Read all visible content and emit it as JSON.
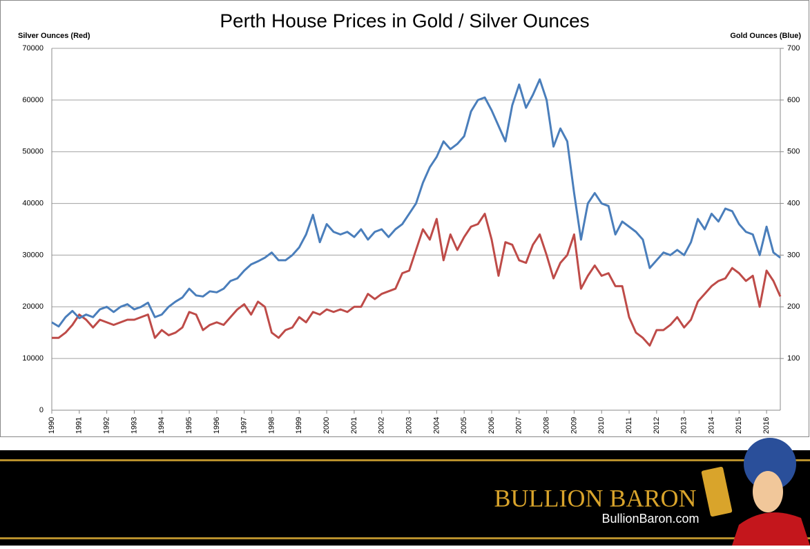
{
  "chart_data": {
    "type": "line",
    "title": "Perth House Prices in Gold / Silver Ounces",
    "y_label": "Silver Ounces (Red)",
    "y2_label": "Gold Ounces (Blue)",
    "x": [
      1990,
      1990.25,
      1990.5,
      1990.75,
      1991,
      1991.25,
      1991.5,
      1991.75,
      1992,
      1992.25,
      1992.5,
      1992.75,
      1993,
      1993.25,
      1993.5,
      1993.75,
      1994,
      1994.25,
      1994.5,
      1994.75,
      1995,
      1995.25,
      1995.5,
      1995.75,
      1996,
      1996.25,
      1996.5,
      1996.75,
      1997,
      1997.25,
      1997.5,
      1997.75,
      1998,
      1998.25,
      1998.5,
      1998.75,
      1999,
      1999.25,
      1999.5,
      1999.75,
      2000,
      2000.25,
      2000.5,
      2000.75,
      2001,
      2001.25,
      2001.5,
      2001.75,
      2002,
      2002.25,
      2002.5,
      2002.75,
      2003,
      2003.25,
      2003.5,
      2003.75,
      2004,
      2004.25,
      2004.5,
      2004.75,
      2005,
      2005.25,
      2005.5,
      2005.75,
      2006,
      2006.25,
      2006.5,
      2006.75,
      2007,
      2007.25,
      2007.5,
      2007.75,
      2008,
      2008.25,
      2008.5,
      2008.75,
      2009,
      2009.25,
      2009.5,
      2009.75,
      2010,
      2010.25,
      2010.5,
      2010.75,
      2011,
      2011.25,
      2011.5,
      2011.75,
      2012,
      2012.25,
      2012.5,
      2012.75,
      2013,
      2013.25,
      2013.5,
      2013.75,
      2014,
      2014.25,
      2014.5,
      2014.75,
      2015,
      2015.25,
      2015.5,
      2015.75,
      2016,
      2016.25,
      2016.5
    ],
    "series": [
      {
        "name": "Silver Ounces",
        "color": "#be4b48",
        "axis": "y",
        "values": [
          14000,
          14000,
          15000,
          16500,
          18500,
          17500,
          16000,
          17500,
          17000,
          16500,
          17000,
          17500,
          17500,
          18000,
          18500,
          14000,
          15500,
          14500,
          15000,
          16000,
          19000,
          18500,
          15500,
          16500,
          17000,
          16500,
          18000,
          19500,
          20500,
          18500,
          21000,
          20000,
          15000,
          14000,
          15500,
          16000,
          18000,
          17000,
          19000,
          18500,
          19500,
          19000,
          19500,
          19000,
          20000,
          20000,
          22500,
          21500,
          22500,
          23000,
          23500,
          26500,
          27000,
          31000,
          35000,
          33000,
          37000,
          29000,
          34000,
          31000,
          33500,
          35500,
          36000,
          38000,
          33000,
          26000,
          32500,
          32000,
          29000,
          28500,
          32000,
          34000,
          30000,
          25500,
          28500,
          30000,
          34000,
          23500,
          26000,
          28000,
          26000,
          26500,
          24000,
          24000,
          18000,
          15000,
          14000,
          12500,
          15500,
          15500,
          16500,
          18000,
          16000,
          17500,
          21000,
          22500,
          24000,
          25000,
          25500,
          27500,
          26500,
          25000,
          26000,
          20000,
          27000,
          25000,
          22000
        ]
      },
      {
        "name": "Gold Ounces",
        "color": "#4a7ebb",
        "axis": "y2",
        "values": [
          170,
          162,
          180,
          192,
          178,
          185,
          180,
          195,
          200,
          190,
          200,
          205,
          195,
          200,
          208,
          180,
          185,
          200,
          210,
          218,
          235,
          222,
          220,
          230,
          228,
          235,
          250,
          255,
          270,
          282,
          288,
          295,
          305,
          290,
          290,
          300,
          315,
          340,
          378,
          325,
          360,
          345,
          340,
          345,
          335,
          350,
          330,
          345,
          350,
          335,
          350,
          360,
          380,
          400,
          440,
          470,
          490,
          520,
          505,
          515,
          530,
          578,
          600,
          605,
          580,
          550,
          520,
          590,
          630,
          585,
          610,
          640,
          600,
          510,
          545,
          520,
          420,
          330,
          400,
          420,
          400,
          395,
          340,
          365,
          355,
          345,
          330,
          275,
          290,
          305,
          300,
          310,
          300,
          325,
          370,
          350,
          380,
          365,
          390,
          385,
          360,
          345,
          340,
          300,
          355,
          305,
          295
        ]
      }
    ],
    "xlim": [
      1990,
      2016.5
    ],
    "xticks": [
      1990,
      1991,
      1992,
      1993,
      1994,
      1995,
      1996,
      1997,
      1998,
      1999,
      2000,
      2001,
      2002,
      2003,
      2004,
      2005,
      2006,
      2007,
      2008,
      2009,
      2010,
      2011,
      2012,
      2013,
      2014,
      2015,
      2016
    ],
    "ylim": [
      0,
      70000
    ],
    "yticks": [
      0,
      10000,
      20000,
      30000,
      40000,
      50000,
      60000,
      70000
    ],
    "y2lim": [
      0,
      700
    ],
    "y2ticks": [
      100,
      200,
      300,
      400,
      500,
      600,
      700
    ],
    "grid": true
  },
  "footer": {
    "brand": "BULLION BARON",
    "site": "BullionBaron.com"
  }
}
